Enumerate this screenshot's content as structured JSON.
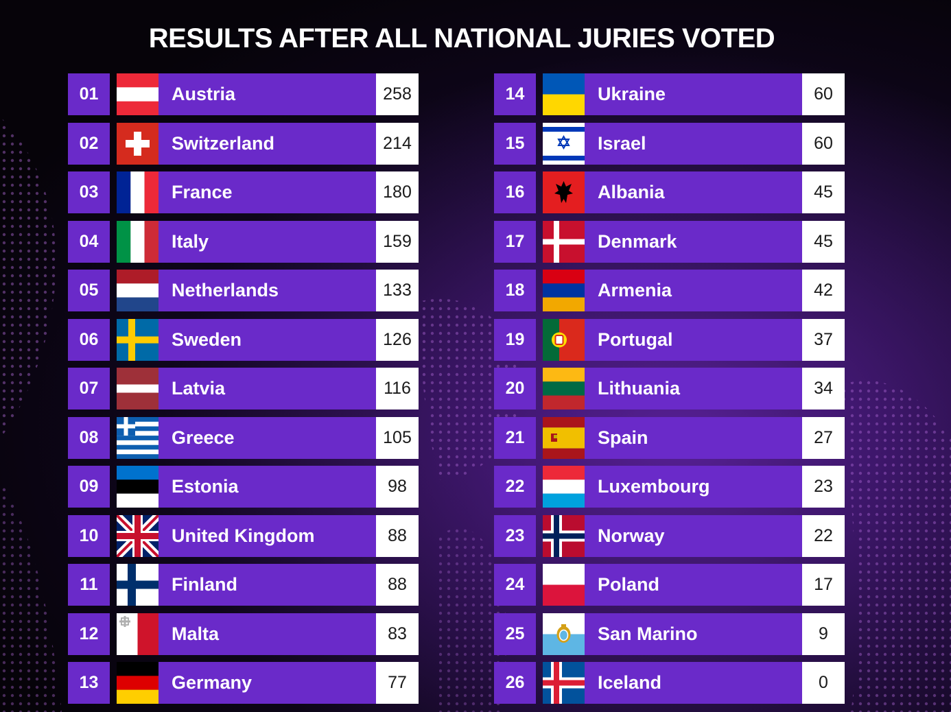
{
  "title": "RESULTS AFTER ALL NATIONAL JURIES VOTED",
  "colors": {
    "bar": "#6a2ac9",
    "points_bg": "#ffffff",
    "background": "#0a0512"
  },
  "left": [
    {
      "rank": "01",
      "country": "Austria",
      "points": "258",
      "flag": "austria-flag-icon"
    },
    {
      "rank": "02",
      "country": "Switzerland",
      "points": "214",
      "flag": "switzerland-flag-icon"
    },
    {
      "rank": "03",
      "country": "France",
      "points": "180",
      "flag": "france-flag-icon"
    },
    {
      "rank": "04",
      "country": "Italy",
      "points": "159",
      "flag": "italy-flag-icon"
    },
    {
      "rank": "05",
      "country": "Netherlands",
      "points": "133",
      "flag": "netherlands-flag-icon"
    },
    {
      "rank": "06",
      "country": "Sweden",
      "points": "126",
      "flag": "sweden-flag-icon"
    },
    {
      "rank": "07",
      "country": "Latvia",
      "points": "116",
      "flag": "latvia-flag-icon"
    },
    {
      "rank": "08",
      "country": "Greece",
      "points": "105",
      "flag": "greece-flag-icon"
    },
    {
      "rank": "09",
      "country": "Estonia",
      "points": "98",
      "flag": "estonia-flag-icon"
    },
    {
      "rank": "10",
      "country": "United Kingdom",
      "points": "88",
      "flag": "united-kingdom-flag-icon"
    },
    {
      "rank": "11",
      "country": "Finland",
      "points": "88",
      "flag": "finland-flag-icon"
    },
    {
      "rank": "12",
      "country": "Malta",
      "points": "83",
      "flag": "malta-flag-icon"
    },
    {
      "rank": "13",
      "country": "Germany",
      "points": "77",
      "flag": "germany-flag-icon"
    }
  ],
  "right": [
    {
      "rank": "14",
      "country": "Ukraine",
      "points": "60",
      "flag": "ukraine-flag-icon"
    },
    {
      "rank": "15",
      "country": "Israel",
      "points": "60",
      "flag": "israel-flag-icon"
    },
    {
      "rank": "16",
      "country": "Albania",
      "points": "45",
      "flag": "albania-flag-icon"
    },
    {
      "rank": "17",
      "country": "Denmark",
      "points": "45",
      "flag": "denmark-flag-icon"
    },
    {
      "rank": "18",
      "country": "Armenia",
      "points": "42",
      "flag": "armenia-flag-icon"
    },
    {
      "rank": "19",
      "country": "Portugal",
      "points": "37",
      "flag": "portugal-flag-icon"
    },
    {
      "rank": "20",
      "country": "Lithuania",
      "points": "34",
      "flag": "lithuania-flag-icon"
    },
    {
      "rank": "21",
      "country": "Spain",
      "points": "27",
      "flag": "spain-flag-icon"
    },
    {
      "rank": "22",
      "country": "Luxembourg",
      "points": "23",
      "flag": "luxembourg-flag-icon"
    },
    {
      "rank": "23",
      "country": "Norway",
      "points": "22",
      "flag": "norway-flag-icon"
    },
    {
      "rank": "24",
      "country": "Poland",
      "points": "17",
      "flag": "poland-flag-icon"
    },
    {
      "rank": "25",
      "country": "San Marino",
      "points": "9",
      "flag": "san-marino-flag-icon"
    },
    {
      "rank": "26",
      "country": "Iceland",
      "points": "0",
      "flag": "iceland-flag-icon"
    }
  ]
}
